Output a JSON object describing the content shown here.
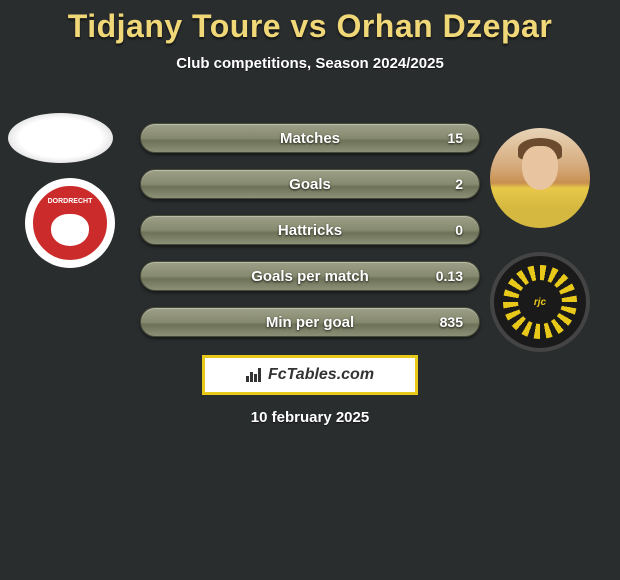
{
  "header": {
    "title": "Tidjany Toure vs Orhan Dzepar",
    "subtitle": "Club competitions, Season 2024/2025"
  },
  "colors": {
    "background": "#2a2d2e",
    "title": "#f0d878",
    "bar_gradient_top": "#9da087",
    "bar_gradient_bottom": "#6e7258",
    "brand_border": "#e8c818"
  },
  "left_club": {
    "name_top": "FC",
    "name_bottom": "DORDRECHT"
  },
  "right_club": {
    "abbrev": "rjc"
  },
  "stats": [
    {
      "label": "Matches",
      "value": "15"
    },
    {
      "label": "Goals",
      "value": "2"
    },
    {
      "label": "Hattricks",
      "value": "0"
    },
    {
      "label": "Goals per match",
      "value": "0.13"
    },
    {
      "label": "Min per goal",
      "value": "835"
    }
  ],
  "stat_bar_style": {
    "height": 30,
    "border_radius": 15,
    "gap": 16,
    "label_fontsize": 15,
    "value_fontsize": 14
  },
  "brand": {
    "text": "FcTables.com"
  },
  "date": "10 february 2025"
}
